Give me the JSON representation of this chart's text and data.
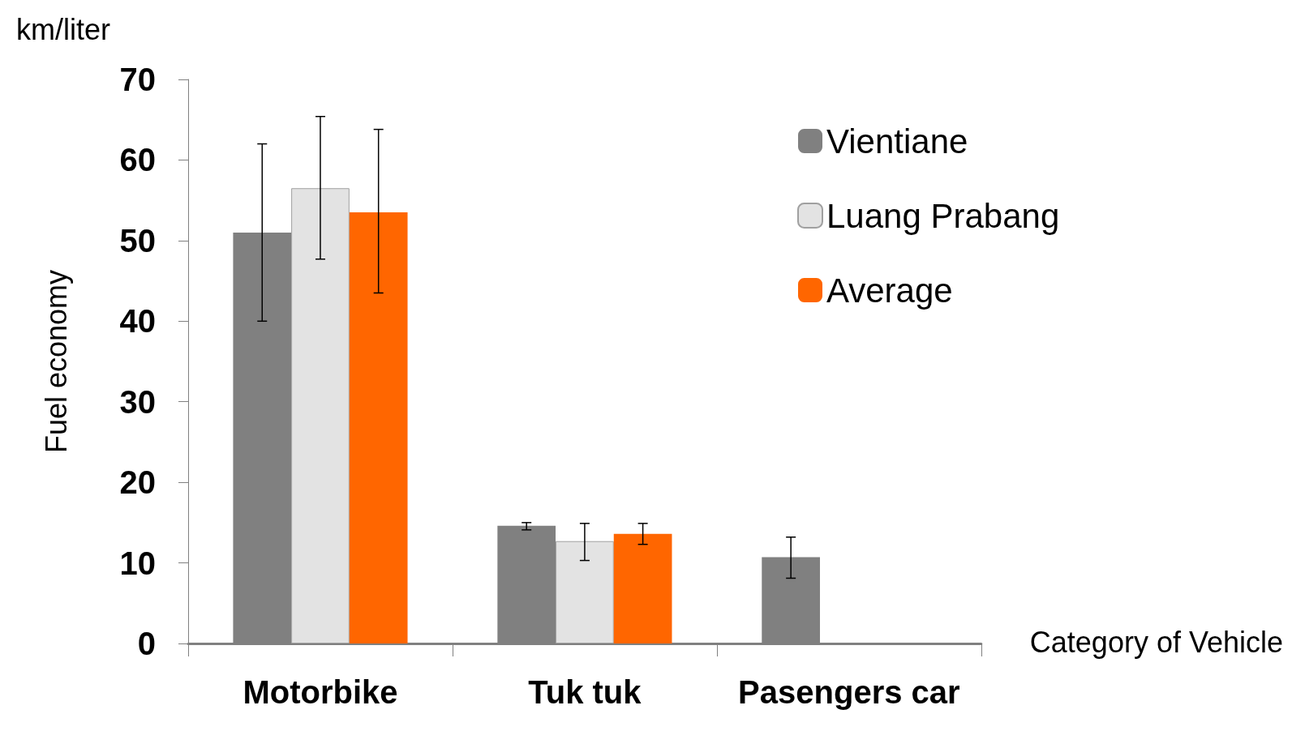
{
  "chart_data": {
    "type": "bar",
    "ylabel": "Fuel economy",
    "xlabel": "Category of Vehicle",
    "annotations": [
      "km/liter"
    ],
    "categories": [
      "Motorbike",
      "Tuk tuk",
      "Pasengers car"
    ],
    "series": [
      {
        "name": "Vientiane",
        "color": "#808080",
        "values": [
          51.0,
          14.6,
          10.7
        ],
        "errors": [
          [
            40.0,
            62.0
          ],
          [
            14.1,
            15.0
          ],
          [
            8.1,
            13.2
          ]
        ]
      },
      {
        "name": "Luang Prabang",
        "color": "#e3e3e3",
        "values": [
          56.5,
          12.7,
          null
        ],
        "errors": [
          [
            47.7,
            65.4
          ],
          [
            10.3,
            14.9
          ],
          null
        ]
      },
      {
        "name": "Average",
        "color": "#ff6600",
        "values": [
          53.5,
          13.6,
          null
        ],
        "errors": [
          [
            43.5,
            63.8
          ],
          [
            12.3,
            14.9
          ],
          null
        ]
      }
    ],
    "ylim": [
      0,
      70
    ],
    "yticks": [
      0,
      10,
      20,
      30,
      40,
      50,
      60,
      70
    ],
    "grid": false,
    "legend": "top right"
  }
}
